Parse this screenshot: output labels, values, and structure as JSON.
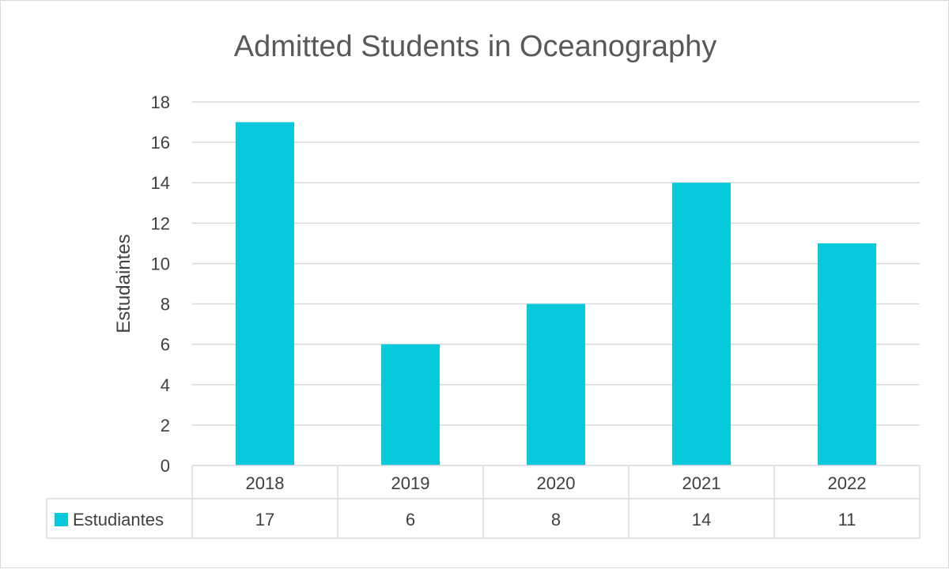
{
  "chart_data": {
    "type": "bar",
    "title": "Admitted Students in Oceanography",
    "ylabel": "Estudaintes",
    "xlabel": "",
    "categories": [
      "2018",
      "2019",
      "2020",
      "2021",
      "2022"
    ],
    "series": [
      {
        "name": "Estudiantes",
        "values": [
          17,
          6,
          8,
          14,
          11
        ],
        "color": "#08c8dc"
      }
    ],
    "ylim": [
      0,
      18
    ],
    "yticks": [
      0,
      2,
      4,
      6,
      8,
      10,
      12,
      14,
      16,
      18
    ],
    "grid": true,
    "legend": "data-table"
  }
}
